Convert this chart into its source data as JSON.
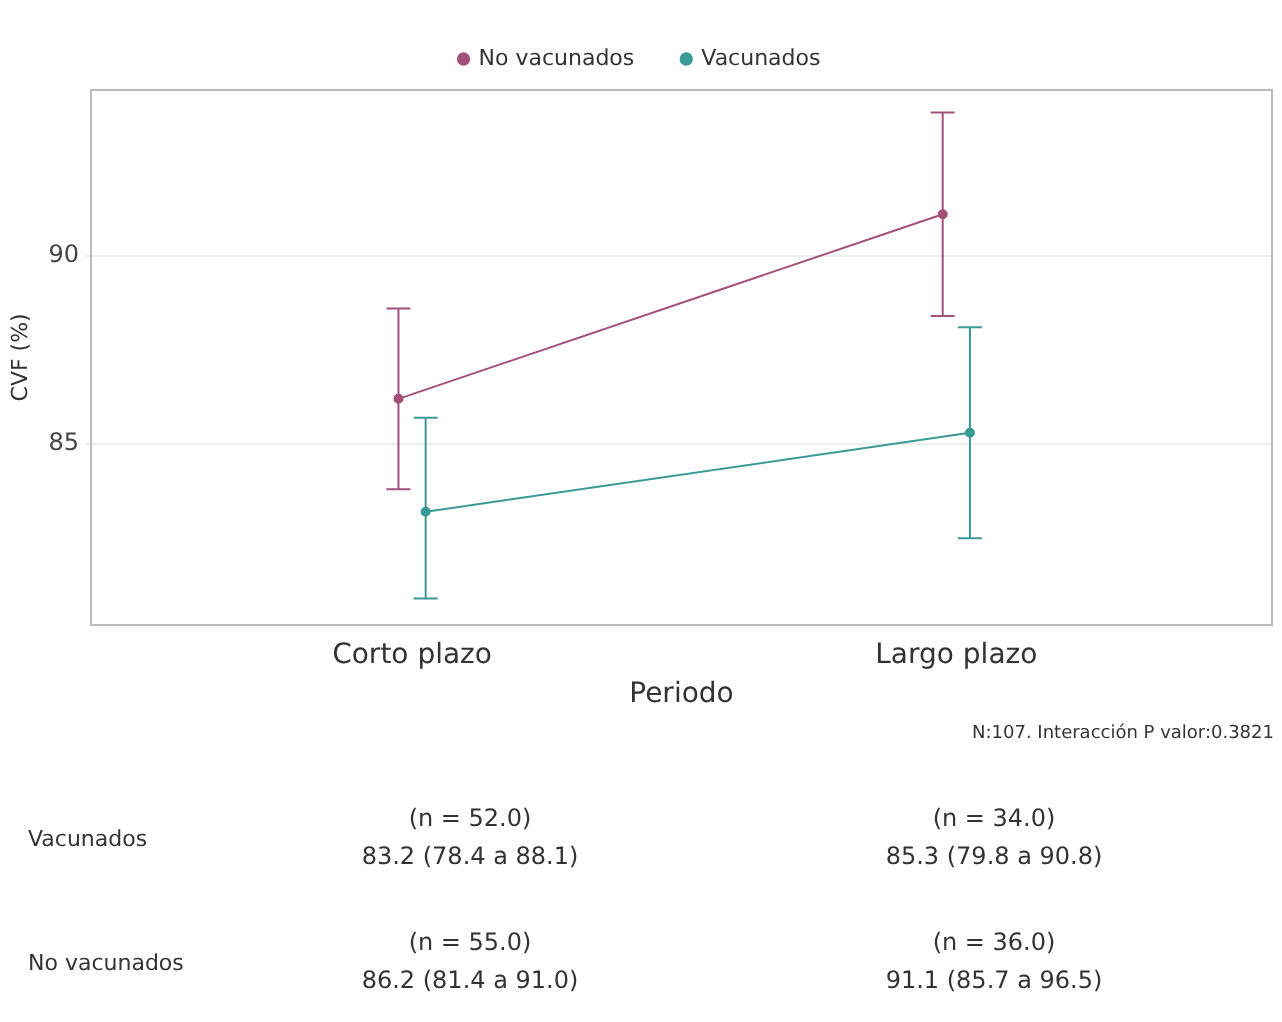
{
  "chart_data": {
    "type": "line",
    "xlabel": "Periodo",
    "ylabel": "CVF (%)",
    "categories": [
      "Corto plazo",
      "Largo plazo"
    ],
    "series": [
      {
        "name": "No vacunados",
        "color": "#a3507c",
        "values": [
          86.2,
          91.1
        ],
        "errors": [
          [
            83.8,
            88.6
          ],
          [
            88.4,
            93.8
          ]
        ]
      },
      {
        "name": "Vacunados",
        "color": "#3a9a96",
        "values": [
          83.2,
          85.3
        ],
        "errors": [
          [
            80.9,
            85.7
          ],
          [
            82.5,
            88.1
          ]
        ]
      }
    ],
    "ylim": [
      80.2,
      94.4
    ],
    "yticks": [
      85,
      90
    ],
    "grid": "y",
    "legend": "top",
    "marker": "circle",
    "line_style": "solid",
    "annotations": [
      "N:107.   Interacción P valor:0.3821",
      "Vacunados",
      "(n = 52.0)",
      "83.2 (78.4  a 88.1)",
      "(n = 34.0)",
      "85.3 (79.8  a 90.8)",
      "No vacunados",
      "(n = 55.0)",
      "86.2 (81.4  a 91.0)",
      "(n = 36.0)",
      "91.1 (85.7  a 96.5)"
    ]
  }
}
